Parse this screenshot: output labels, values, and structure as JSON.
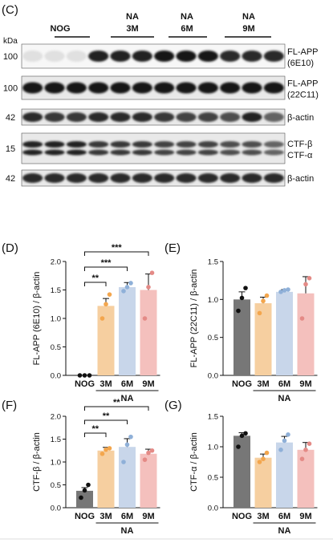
{
  "blot": {
    "panel_label": "(C)",
    "kda_label": "kDa",
    "groups": [
      {
        "name": "NOG",
        "sub": ""
      },
      {
        "name": "NA",
        "sub": "3M"
      },
      {
        "name": "NA",
        "sub": "6M"
      },
      {
        "name": "NA",
        "sub": "9M"
      }
    ],
    "rows": [
      {
        "kda": "100",
        "label_lines": [
          "FL-APP",
          "(6E10)"
        ],
        "band_intensity": [
          0.05,
          0.05,
          0.05,
          0.9,
          0.9,
          0.9,
          0.95,
          0.95,
          0.95,
          0.85,
          0.85,
          0.85
        ]
      },
      {
        "kda": "100",
        "label_lines": [
          "FL-APP",
          "(22C11)"
        ],
        "band_intensity": [
          0.95,
          0.95,
          0.95,
          0.95,
          0.95,
          0.95,
          0.95,
          0.95,
          0.95,
          0.95,
          0.95,
          0.95
        ]
      },
      {
        "kda": "42",
        "label_lines": [
          "β-actin"
        ],
        "band_intensity": [
          0.85,
          0.8,
          0.8,
          0.85,
          0.85,
          0.85,
          0.8,
          0.75,
          0.75,
          0.7,
          0.9,
          0.6
        ]
      },
      {
        "kda": "15",
        "label_lines": [
          "CTF-β",
          "CTF-α"
        ],
        "band_intensity": [
          0.9,
          0.9,
          0.9,
          0.8,
          0.8,
          0.8,
          0.75,
          0.75,
          0.75,
          0.7,
          0.7,
          0.6
        ]
      },
      {
        "kda": "42",
        "label_lines": [
          "β-actin"
        ],
        "band_intensity": [
          0.85,
          0.85,
          0.85,
          0.85,
          0.85,
          0.85,
          0.85,
          0.85,
          0.85,
          0.85,
          0.85,
          0.85
        ]
      }
    ]
  },
  "chart_data": [
    {
      "panel_label": "(D)",
      "type": "bar",
      "ylabel": "FL-APP (6E10) / β-actin",
      "categories": [
        "NOG",
        "3M",
        "6M",
        "9M"
      ],
      "group_label": "NA",
      "ylim": [
        0,
        2.0
      ],
      "yticks": [
        "0.0",
        "0.5",
        "1.0",
        "1.5",
        "2.0"
      ],
      "values": [
        0.0,
        1.22,
        1.55,
        1.5
      ],
      "errors": [
        0.0,
        0.13,
        0.08,
        0.28
      ],
      "points": [
        [
          0.0,
          0.0,
          0.0
        ],
        [
          1.0,
          1.25,
          1.42
        ],
        [
          1.48,
          1.55,
          1.62
        ],
        [
          1.0,
          1.55,
          1.8
        ]
      ],
      "significance": [
        {
          "from": 0,
          "to": 1,
          "label": "**"
        },
        {
          "from": 0,
          "to": 2,
          "label": "***"
        },
        {
          "from": 0,
          "to": 3,
          "label": "***"
        }
      ],
      "colors": [
        "#777777",
        "#f6cfa0",
        "#c8d6ea",
        "#f4c0bd"
      ],
      "dot_colors": [
        "#111111",
        "#f3a64d",
        "#8fb0d8",
        "#e48a86"
      ]
    },
    {
      "panel_label": "(E)",
      "type": "bar",
      "ylabel": "FL-APP (22C11) / β-actin",
      "categories": [
        "NOG",
        "3M",
        "6M",
        "9M"
      ],
      "group_label": "NA",
      "ylim": [
        0,
        1.5
      ],
      "yticks": [
        "0.0",
        "0.5",
        "1.0",
        "1.5"
      ],
      "values": [
        1.0,
        0.95,
        1.1,
        1.08
      ],
      "errors": [
        0.1,
        0.08,
        0.03,
        0.22
      ],
      "points": [
        [
          0.85,
          1.02,
          1.15
        ],
        [
          0.82,
          0.98,
          1.05
        ],
        [
          1.1,
          1.12,
          1.13
        ],
        [
          0.75,
          1.2,
          1.28
        ]
      ],
      "significance": [],
      "colors": [
        "#777777",
        "#f6cfa0",
        "#c8d6ea",
        "#f4c0bd"
      ],
      "dot_colors": [
        "#111111",
        "#f3a64d",
        "#8fb0d8",
        "#e48a86"
      ]
    },
    {
      "panel_label": "(F)",
      "type": "bar",
      "ylabel": "CTF-β / β-actin",
      "categories": [
        "NOG",
        "3M",
        "6M",
        "9M"
      ],
      "group_label": "NA",
      "ylim": [
        0,
        2.0
      ],
      "yticks": [
        "0.0",
        "0.5",
        "1.0",
        "1.5",
        "2.0"
      ],
      "values": [
        0.37,
        1.25,
        1.33,
        1.18
      ],
      "errors": [
        0.07,
        0.07,
        0.18,
        0.1
      ],
      "points": [
        [
          0.22,
          0.38,
          0.5
        ],
        [
          1.18,
          1.27,
          1.3
        ],
        [
          1.0,
          1.38,
          1.55
        ],
        [
          1.05,
          1.2,
          1.25
        ]
      ],
      "significance": [
        {
          "from": 0,
          "to": 1,
          "label": "**"
        },
        {
          "from": 0,
          "to": 2,
          "label": "**"
        },
        {
          "from": 0,
          "to": 3,
          "label": "**"
        }
      ],
      "colors": [
        "#777777",
        "#f6cfa0",
        "#c8d6ea",
        "#f4c0bd"
      ],
      "dot_colors": [
        "#111111",
        "#f3a64d",
        "#8fb0d8",
        "#e48a86"
      ]
    },
    {
      "panel_label": "(G)",
      "type": "bar",
      "ylabel": "CTF-α / β-actin",
      "categories": [
        "NOG",
        "3M",
        "6M",
        "9M"
      ],
      "group_label": "NA",
      "ylim": [
        0,
        1.5
      ],
      "yticks": [
        "0.0",
        "0.5",
        "1.0",
        "1.5"
      ],
      "values": [
        1.18,
        0.82,
        1.07,
        0.95
      ],
      "errors": [
        0.05,
        0.06,
        0.1,
        0.12
      ],
      "points": [
        [
          1.0,
          1.18,
          1.22
        ],
        [
          0.75,
          0.8,
          0.9
        ],
        [
          0.95,
          1.1,
          1.2
        ],
        [
          0.8,
          0.95,
          1.05
        ]
      ],
      "significance": [],
      "colors": [
        "#777777",
        "#f6cfa0",
        "#c8d6ea",
        "#f4c0bd"
      ],
      "dot_colors": [
        "#111111",
        "#f3a64d",
        "#8fb0d8",
        "#e48a86"
      ]
    }
  ]
}
